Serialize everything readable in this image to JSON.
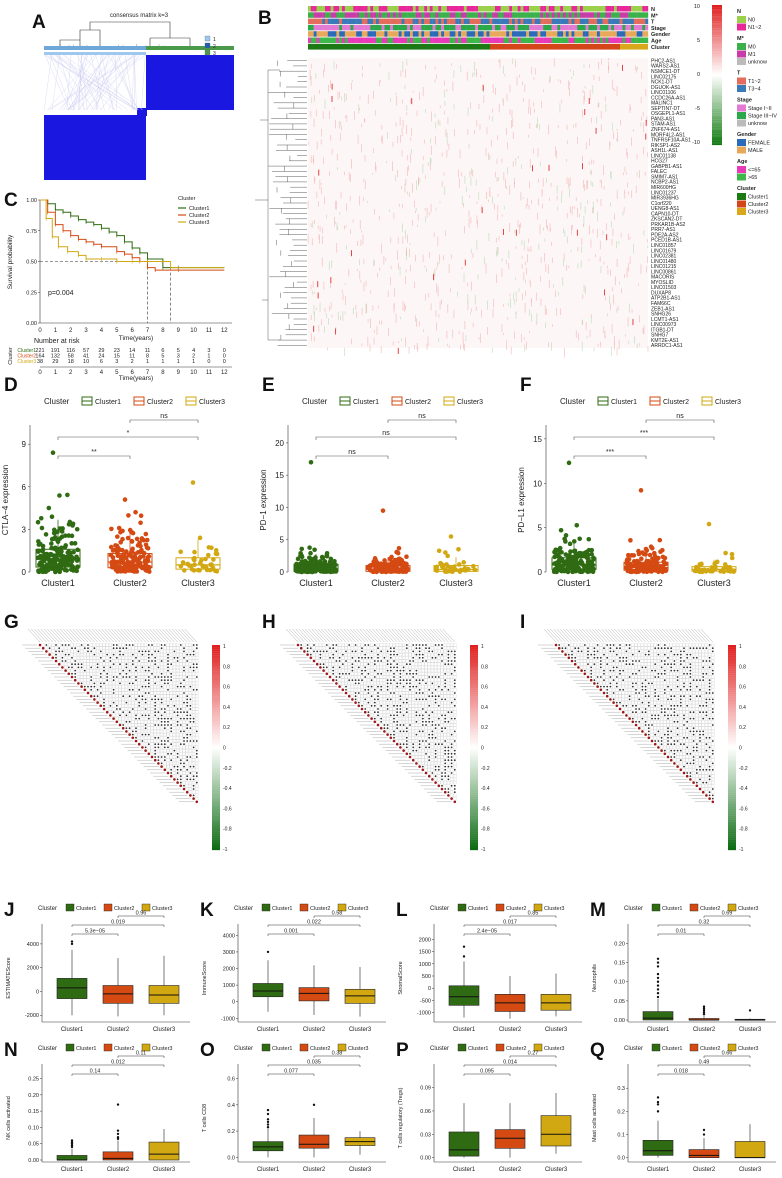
{
  "panels": {
    "A": "A",
    "B": "B",
    "C": "C",
    "D": "D",
    "E": "E",
    "F": "F",
    "G": "G",
    "H": "H",
    "I": "I",
    "J": "J",
    "K": "K",
    "L": "L",
    "M": "M",
    "N": "N",
    "O": "O",
    "P": "P",
    "Q": "Q"
  },
  "colors": {
    "c1": "#2f6b12",
    "c2": "#d44a12",
    "c3": "#d2a812",
    "blue": "#1a18e0",
    "cluster1": "#1b7a14",
    "cluster2": "#d4461a",
    "cluster3": "#d9a81a"
  },
  "panel_a": {
    "title": "consensus matrix k=3",
    "legend": [
      "1",
      "2",
      "3"
    ]
  },
  "panel_b": {
    "row_annotations": [
      "N",
      "M*",
      "T",
      "Stage",
      "Gender",
      "Age",
      "Cluster"
    ],
    "genes": [
      "PHC2-AS1",
      "WARS2-AS1",
      "NSMCE1-DT",
      "LINC02175",
      "NCK1-DT",
      "DGUOK-AS1",
      "LINC01106",
      "CCDC26A-AS1",
      "MALINC1",
      "SEPTIN7-DT",
      "OSGEPL1-AS1",
      "PAN3-AS1",
      "STAM-AS1",
      "ZNF674-AS1",
      "MORF4L2-AS1",
      "TNFRSF10A-AS1",
      "RIKSP1-AS2",
      "ASH1L-AS1",
      "LINC01138",
      "HCG27",
      "GABPB1-AS1",
      "FALEC",
      "SMIM7-AS1",
      "NCBP2-AS1",
      "MIR600HG",
      "LINC01237",
      "MIR3936HG",
      "C1orf220",
      "UENG8-AS1",
      "CAPN10-DT",
      "ZKSCAN2-DT",
      "PRKAR1B-AS2",
      "PRR7-AS1",
      "PDE2A-AS2",
      "PCED1B-AS1",
      "LINC01857",
      "LINC01679",
      "LINC02381",
      "LINC01480",
      "LINC01215",
      "LINC00861",
      "MACORIS",
      "MYOSLID",
      "LINC01503",
      "DUXAP8",
      "ATP2B1-AS1",
      "FAM66C",
      "ZEB1-AS1",
      "SNHG26",
      "LCMT1-AS1",
      "LINC00973",
      "ITGB1-DT",
      "SNHG7",
      "KMT2E-AS1",
      "ARRDC1-AS1"
    ],
    "colorbar_ticks": [
      "10",
      "5",
      "0",
      "-5",
      "-10"
    ],
    "legend": [
      {
        "title": "N",
        "items": [
          {
            "label": "N0",
            "color": "#9ad04a"
          },
          {
            "label": "N1~2",
            "color": "#e8289a"
          }
        ]
      },
      {
        "title": "M*",
        "items": [
          {
            "label": "M0",
            "color": "#3cb04a"
          },
          {
            "label": "M1",
            "color": "#c83ca8"
          },
          {
            "label": "unknow",
            "color": "#bbbbbb"
          }
        ]
      },
      {
        "title": "T",
        "items": [
          {
            "label": "T1~2",
            "color": "#e36c5c"
          },
          {
            "label": "T3~4",
            "color": "#3a7ab8"
          }
        ]
      },
      {
        "title": "Stage",
        "items": [
          {
            "label": "Stage I~II",
            "color": "#e37ad4"
          },
          {
            "label": "Stage III~IV",
            "color": "#2aa84a"
          },
          {
            "label": "unknow",
            "color": "#bbbbbb"
          }
        ]
      },
      {
        "title": "Gender",
        "items": [
          {
            "label": "FEMALE",
            "color": "#2a6ab8"
          },
          {
            "label": "MALE",
            "color": "#e8a85a"
          }
        ]
      },
      {
        "title": "Age",
        "items": [
          {
            "label": "<=65",
            "color": "#e83ab8"
          },
          {
            "label": ">65",
            "color": "#3cb84a"
          }
        ]
      },
      {
        "title": "Cluster",
        "items": [
          {
            "label": "Cluster1",
            "color": "#1b7a14"
          },
          {
            "label": "Cluster2",
            "color": "#d4461a"
          },
          {
            "label": "Cluster3",
            "color": "#d9a81a"
          }
        ]
      }
    ]
  },
  "panel_c": {
    "ylabel": "Survival probability",
    "xlabel": "Time(years)",
    "pvalue": "p=0.004",
    "legend_title": "Cluster",
    "legend": [
      "Cluster1",
      "Cluster2",
      "Cluster3"
    ],
    "y_ticks": [
      "1.00",
      "0.75",
      "0.50",
      "0.25",
      "0.00"
    ],
    "x_ticks": [
      "0",
      "1",
      "2",
      "3",
      "4",
      "5",
      "6",
      "7",
      "8",
      "9",
      "10",
      "11",
      "12"
    ],
    "risk_title": "Number at risk",
    "risk_ylabel": "Cluster",
    "risk_rows": [
      {
        "name": "Cluster1",
        "values": [
          "221",
          "191",
          "116",
          "57",
          "29",
          "23",
          "14",
          "11",
          "6",
          "5",
          "4",
          "3",
          "0"
        ]
      },
      {
        "name": "Cluster2",
        "values": [
          "164",
          "132",
          "58",
          "41",
          "24",
          "15",
          "11",
          "8",
          "5",
          "3",
          "2",
          "1",
          "0"
        ]
      },
      {
        "name": "Cluster3",
        "values": [
          "38",
          "29",
          "18",
          "10",
          "6",
          "3",
          "2",
          "1",
          "1",
          "1",
          "1",
          "0",
          "0"
        ]
      }
    ]
  },
  "box_legend": {
    "title": "Cluster",
    "items": [
      "Cluster1",
      "Cluster2",
      "Cluster3"
    ]
  },
  "panel_d": {
    "ylabel": "CTLA−4 expression",
    "y_ticks": [
      "0",
      "3",
      "6",
      "9"
    ],
    "categories": [
      "Cluster1",
      "Cluster2",
      "Cluster3"
    ],
    "sig": [
      "**",
      "*",
      "ns"
    ]
  },
  "panel_e": {
    "ylabel": "PD−1 expression",
    "y_ticks": [
      "0",
      "5",
      "10",
      "15",
      "20"
    ],
    "categories": [
      "Cluster1",
      "Cluster2",
      "Cluster3"
    ],
    "sig": [
      "ns",
      "ns",
      "ns"
    ]
  },
  "panel_f": {
    "ylabel": "PD−L1 expression",
    "y_ticks": [
      "0",
      "5",
      "10",
      "15"
    ],
    "categories": [
      "Cluster1",
      "Cluster2",
      "Cluster3"
    ],
    "sig": [
      "***",
      "***",
      "ns"
    ]
  },
  "corr_scale": [
    "1",
    "0.8",
    "0.6",
    "0.4",
    "0.2",
    "0",
    "-0.2",
    "-0.4",
    "-0.6",
    "-0.8",
    "-1"
  ],
  "panel_j": {
    "ylabel": "ESTIMATEScore",
    "y_ticks": [
      "-2000",
      "0",
      "2000",
      "4000"
    ],
    "pvals": [
      "5.3e−05",
      "0.019",
      "0.96"
    ]
  },
  "panel_k": {
    "ylabel": "ImmuneScore",
    "y_ticks": [
      "-1000",
      "0",
      "1000",
      "2000",
      "3000",
      "4000"
    ],
    "pvals": [
      "0.001",
      "0.022",
      "0.58"
    ]
  },
  "panel_l": {
    "ylabel": "StromalScore",
    "y_ticks": [
      "-1000",
      "-500",
      "0",
      "500",
      "1000",
      "1500",
      "2000"
    ],
    "pvals": [
      "2.4e−05",
      "0.017",
      "0.85"
    ]
  },
  "panel_m": {
    "ylabel": "Neutrophils",
    "y_ticks": [
      "0.00",
      "0.05",
      "0.10",
      "0.15",
      "0.20"
    ],
    "pvals": [
      "0.01",
      "0.32",
      "0.69"
    ]
  },
  "panel_n": {
    "ylabel": "NK cells activated",
    "y_ticks": [
      "0.00",
      "0.05",
      "0.10",
      "0.15",
      "0.20",
      "0.25"
    ],
    "pvals": [
      "0.14",
      "0.012",
      "0.11"
    ]
  },
  "panel_o": {
    "ylabel": "T cells CD8",
    "y_ticks": [
      "0.0",
      "0.2",
      "0.4",
      "0.6"
    ],
    "pvals": [
      "0.077",
      "0.035",
      "0.38"
    ]
  },
  "panel_p": {
    "ylabel": "T cells regulatory (Tregs)",
    "y_ticks": [
      "0.00",
      "0.03",
      "0.06",
      "0.09"
    ],
    "pvals": [
      "0.095",
      "0.014",
      "0.27"
    ]
  },
  "panel_q": {
    "ylabel": "Mast cells activated",
    "y_ticks": [
      "0.0",
      "0.1",
      "0.2",
      "0.3"
    ],
    "pvals": [
      "0.018",
      "0.49",
      "0.66"
    ]
  },
  "box_categories": [
    "Cluster1",
    "Cluster2",
    "Cluster3"
  ],
  "chart_data": [
    {
      "type": "scatter",
      "id": "D",
      "title": "",
      "ylabel": "CTLA−4 expression",
      "categories": [
        "Cluster1",
        "Cluster2",
        "Cluster3"
      ],
      "ylim": [
        0,
        10
      ],
      "medians": [
        0.9,
        0.7,
        0.5
      ],
      "q1": [
        0.35,
        0.3,
        0.2
      ],
      "q3": [
        1.6,
        1.3,
        1.0
      ],
      "max": [
        8.4,
        5.1,
        6.3
      ],
      "sig": [
        "**",
        "*",
        "ns"
      ]
    },
    {
      "type": "scatter",
      "id": "E",
      "ylabel": "PD−1 expression",
      "categories": [
        "Cluster1",
        "Cluster2",
        "Cluster3"
      ],
      "ylim": [
        0,
        22
      ],
      "medians": [
        0.5,
        0.4,
        0.4
      ],
      "q1": [
        0.1,
        0.1,
        0.1
      ],
      "q3": [
        1.2,
        1.0,
        1.0
      ],
      "max": [
        17,
        9.5,
        5.5
      ],
      "sig": [
        "ns",
        "ns",
        "ns"
      ]
    },
    {
      "type": "scatter",
      "id": "F",
      "ylabel": "PD−L1 expression",
      "categories": [
        "Cluster1",
        "Cluster2",
        "Cluster3"
      ],
      "ylim": [
        0,
        16
      ],
      "medians": [
        0.8,
        0.5,
        0.3
      ],
      "q1": [
        0.3,
        0.2,
        0.1
      ],
      "q3": [
        1.6,
        1.1,
        0.6
      ],
      "max": [
        12.3,
        9.2,
        5.4
      ],
      "sig": [
        "***",
        "***",
        "ns"
      ]
    },
    {
      "type": "bar",
      "id": "J",
      "ylabel": "ESTIMATEScore",
      "categories": [
        "Cluster1",
        "Cluster2",
        "Cluster3"
      ],
      "ylim": [
        -2400,
        5000
      ],
      "whisker_low": [
        -2000,
        -2100,
        -2000
      ],
      "q1": [
        -600,
        -1000,
        -1000
      ],
      "median": [
        300,
        -200,
        -300
      ],
      "q3": [
        1100,
        500,
        500
      ],
      "whisker_high": [
        3500,
        2800,
        3000
      ],
      "outliers": [
        [
          4200,
          4000
        ],
        [],
        []
      ],
      "pvalues": [
        "5.3e−05",
        "0.019",
        "0.96"
      ]
    },
    {
      "type": "bar",
      "id": "K",
      "ylabel": "ImmuneScore",
      "categories": [
        "Cluster1",
        "Cluster2",
        "Cluster3"
      ],
      "ylim": [
        -1100,
        4200
      ],
      "whisker_low": [
        -600,
        -800,
        -900
      ],
      "q1": [
        300,
        50,
        -100
      ],
      "median": [
        650,
        500,
        350
      ],
      "q3": [
        1100,
        850,
        750
      ],
      "whisker_high": [
        2500,
        2200,
        2100
      ],
      "outliers": [
        [
          3000
        ],
        [],
        []
      ],
      "pvalues": [
        "0.001",
        "0.022",
        "0.58"
      ]
    },
    {
      "type": "bar",
      "id": "L",
      "ylabel": "StromalScore",
      "categories": [
        "Cluster1",
        "Cluster2",
        "Cluster3"
      ],
      "ylim": [
        -1300,
        2300
      ],
      "whisker_low": [
        -1200,
        -1250,
        -1150
      ],
      "q1": [
        -700,
        -950,
        -900
      ],
      "median": [
        -350,
        -600,
        -600
      ],
      "q3": [
        100,
        -250,
        -250
      ],
      "whisker_high": [
        1100,
        500,
        600
      ],
      "outliers": [
        [
          1300,
          1700
        ],
        [],
        []
      ],
      "pvalues": [
        "2.4e−05",
        "0.017",
        "0.85"
      ]
    },
    {
      "type": "bar",
      "id": "M",
      "ylabel": "Neutrophils",
      "categories": [
        "Cluster1",
        "Cluster2",
        "Cluster3"
      ],
      "ylim": [
        0,
        0.23
      ],
      "whisker_low": [
        0,
        0,
        0
      ],
      "q1": [
        0,
        0,
        0
      ],
      "median": [
        0.005,
        0,
        0
      ],
      "q3": [
        0.022,
        0.004,
        0.002
      ],
      "whisker_high": [
        0.055,
        0.01,
        0.004
      ],
      "outliers": [
        [
          0.06,
          0.07,
          0.08,
          0.09,
          0.1,
          0.11,
          0.12,
          0.14,
          0.15,
          0.16
        ],
        [
          0.015,
          0.02,
          0.025,
          0.03,
          0.035
        ],
        [
          0.025
        ]
      ],
      "pvalues": [
        "0.01",
        "0.32",
        "0.69"
      ]
    },
    {
      "type": "bar",
      "id": "N",
      "ylabel": "NK cells activated",
      "categories": [
        "Cluster1",
        "Cluster2",
        "Cluster3"
      ],
      "ylim": [
        0,
        0.27
      ],
      "whisker_low": [
        0,
        0,
        0
      ],
      "q1": [
        0,
        0,
        0
      ],
      "median": [
        0,
        0.005,
        0.018
      ],
      "q3": [
        0.014,
        0.025,
        0.055
      ],
      "whisker_high": [
        0.035,
        0.06,
        0.095
      ],
      "outliers": [
        [
          0.04,
          0.045,
          0.05,
          0.055,
          0.06
        ],
        [
          0.065,
          0.07,
          0.08,
          0.09,
          0.17
        ],
        []
      ],
      "pvalues": [
        "0.14",
        "0.012",
        "0.11"
      ]
    },
    {
      "type": "bar",
      "id": "O",
      "ylabel": "T cells CD8",
      "categories": [
        "Cluster1",
        "Cluster2",
        "Cluster3"
      ],
      "ylim": [
        -0.02,
        0.65
      ],
      "whisker_low": [
        0,
        0,
        0.02
      ],
      "q1": [
        0.05,
        0.07,
        0.09
      ],
      "median": [
        0.08,
        0.1,
        0.12
      ],
      "q3": [
        0.12,
        0.17,
        0.15
      ],
      "whisker_high": [
        0.22,
        0.3,
        0.2
      ],
      "outliers": [
        [
          0.23,
          0.25,
          0.27,
          0.29,
          0.33,
          0.36
        ],
        [
          0.4
        ],
        []
      ],
      "pvalues": [
        "0.077",
        "0.035",
        "0.38"
      ]
    },
    {
      "type": "bar",
      "id": "P",
      "ylabel": "T cells regulatory (Tregs)",
      "categories": [
        "Cluster1",
        "Cluster2",
        "Cluster3"
      ],
      "ylim": [
        -0.003,
        0.11
      ],
      "whisker_low": [
        0,
        0,
        0.005
      ],
      "q1": [
        0.002,
        0.012,
        0.015
      ],
      "median": [
        0.01,
        0.025,
        0.03
      ],
      "q3": [
        0.033,
        0.036,
        0.054
      ],
      "whisker_high": [
        0.07,
        0.07,
        0.083
      ],
      "outliers": [
        [],
        [],
        []
      ],
      "pvalues": [
        "0.095",
        "0.014",
        "0.27"
      ]
    },
    {
      "type": "bar",
      "id": "Q",
      "ylabel": "Mast cells activated",
      "categories": [
        "Cluster1",
        "Cluster2",
        "Cluster3"
      ],
      "ylim": [
        -0.01,
        0.37
      ],
      "whisker_low": [
        0,
        0,
        0
      ],
      "q1": [
        0.01,
        0,
        0
      ],
      "median": [
        0.03,
        0.01,
        0
      ],
      "q3": [
        0.075,
        0.035,
        0.07
      ],
      "whisker_high": [
        0.16,
        0.085,
        0.145
      ],
      "outliers": [
        [
          0.2,
          0.23,
          0.24,
          0.26
        ],
        [
          0.1,
          0.12
        ],
        []
      ],
      "pvalues": [
        "0.018",
        "0.49",
        "0.66"
      ]
    }
  ]
}
